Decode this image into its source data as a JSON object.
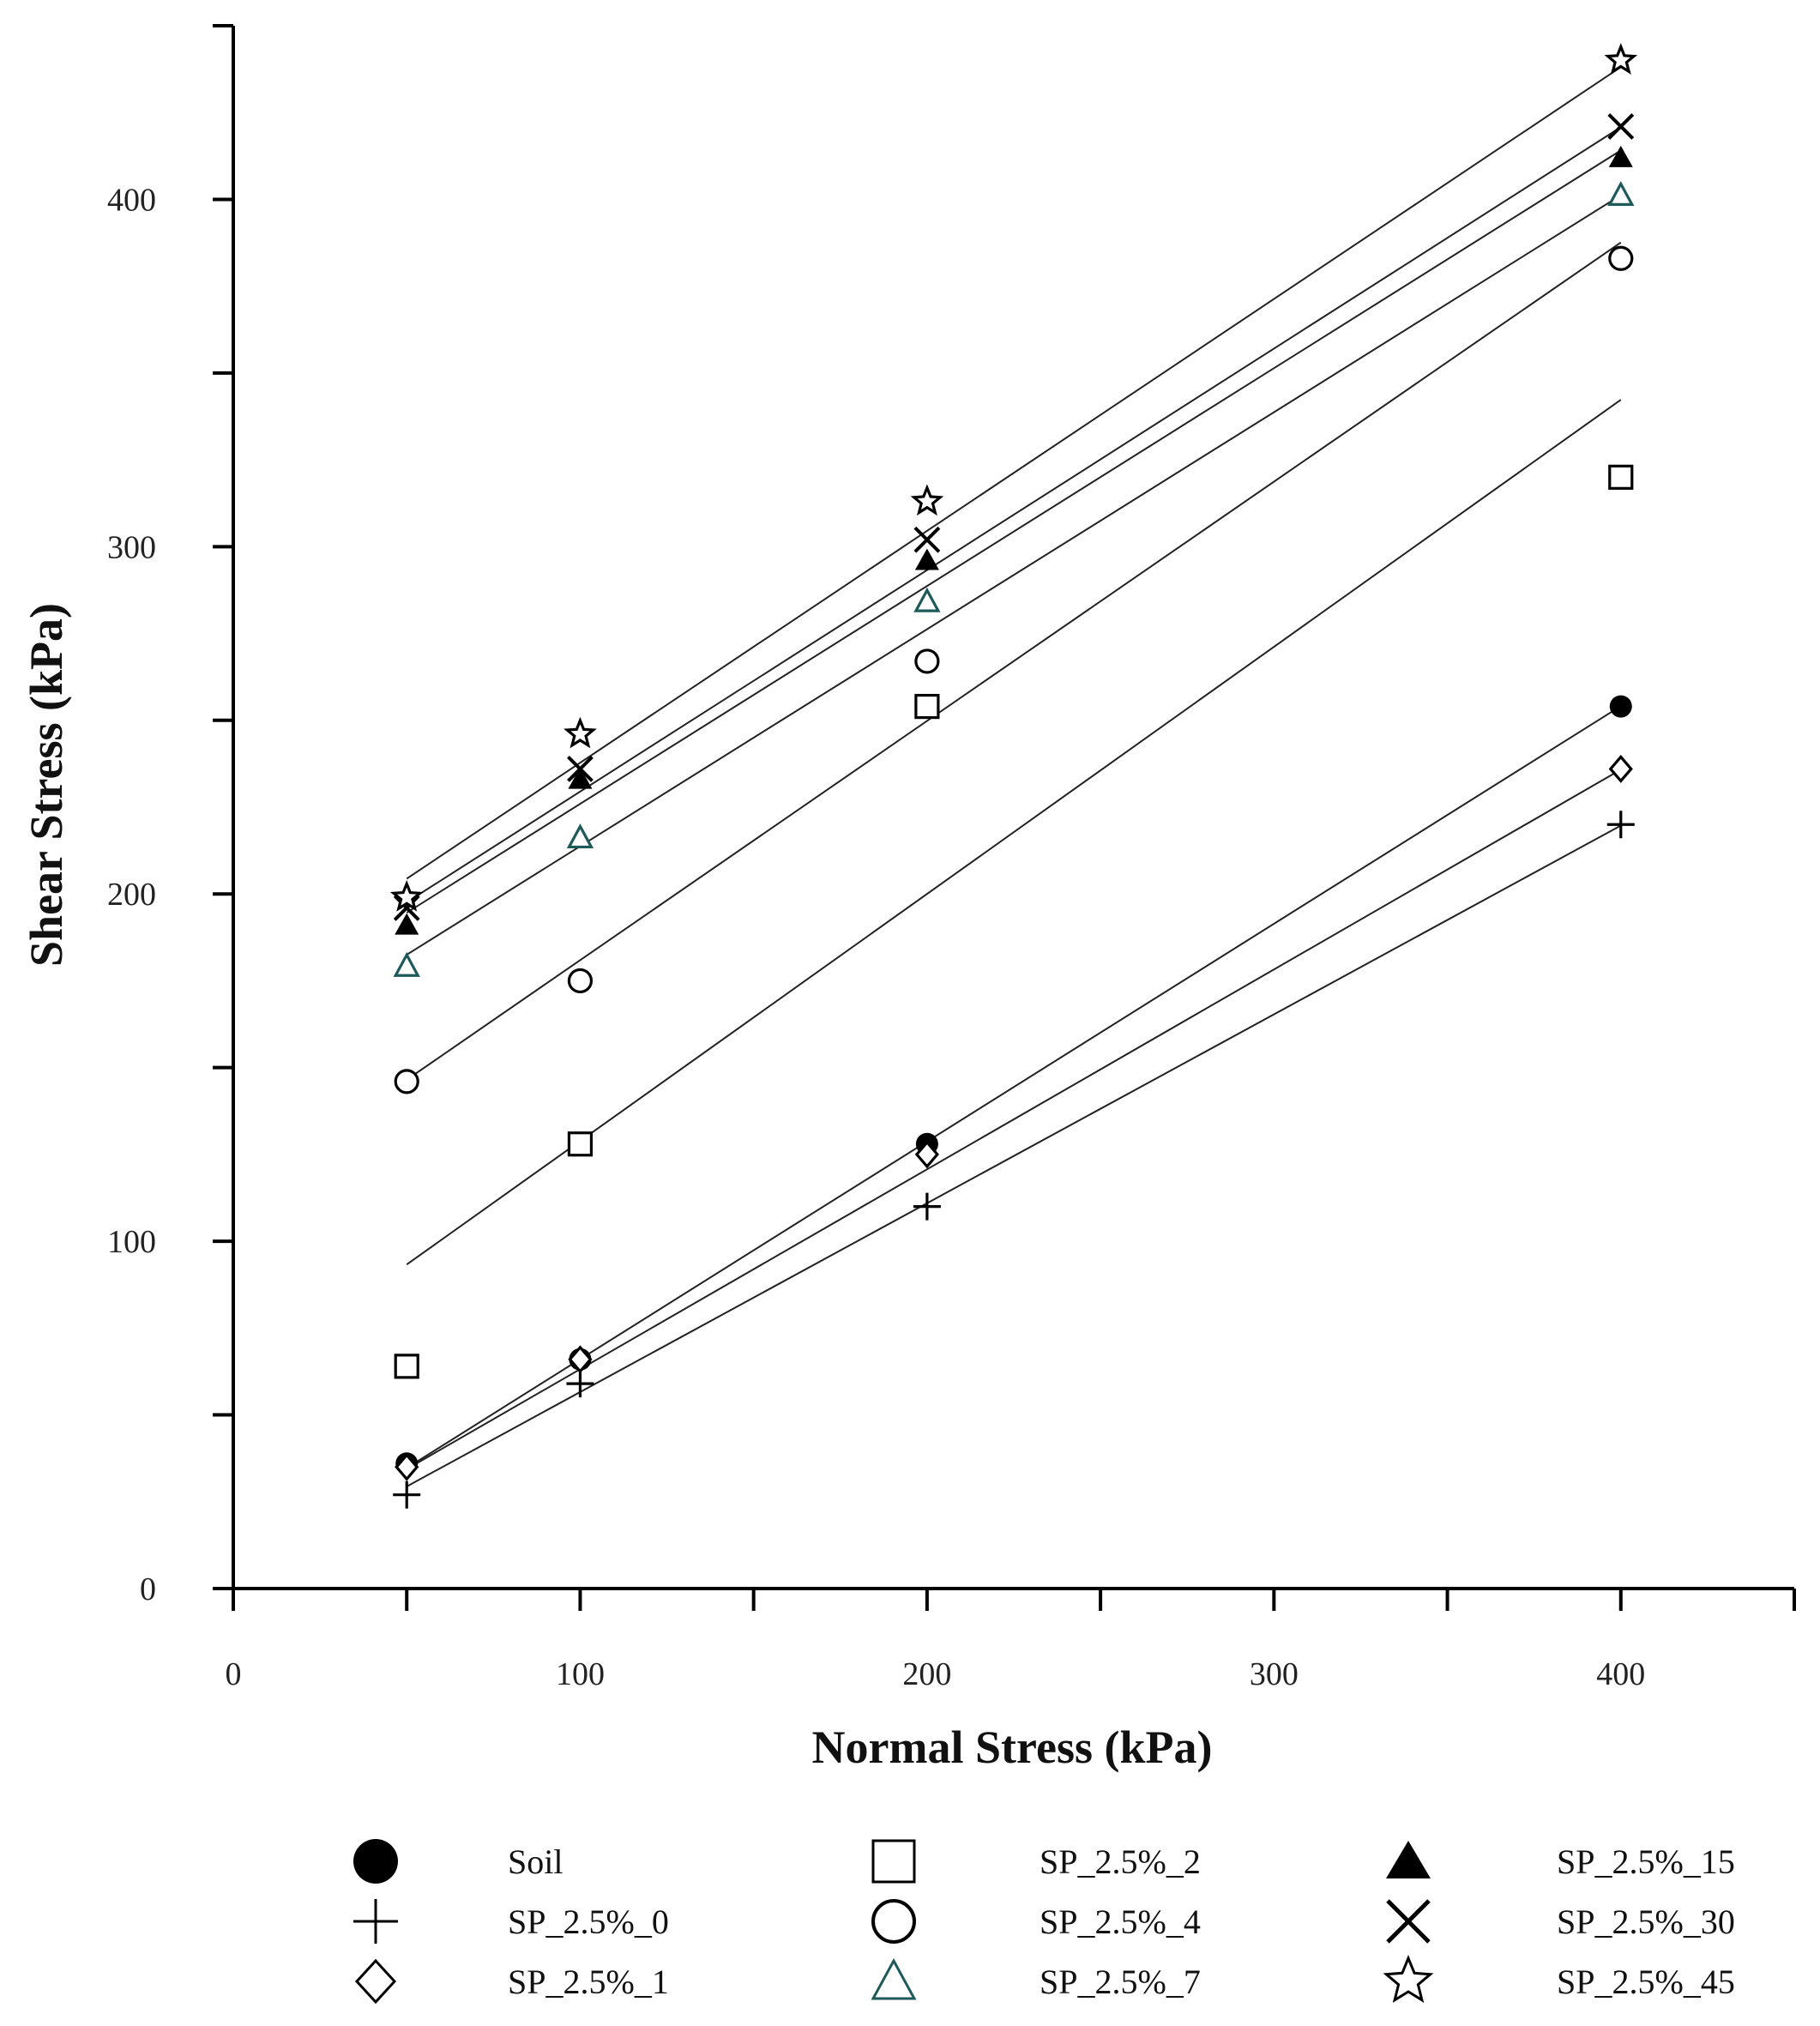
{
  "chart_data": {
    "type": "scatter",
    "xlabel": "Normal Stress (kPa)",
    "ylabel": "Shear Stress (kPa)",
    "xlim": [
      0,
      450
    ],
    "ylim": [
      0,
      450
    ],
    "x_ticks_major": [
      0,
      100,
      200,
      300,
      400
    ],
    "x_ticks_minor": [
      50,
      150,
      250,
      350,
      450
    ],
    "y_ticks_major": [
      0,
      100,
      200,
      300,
      400
    ],
    "y_ticks_minor": [
      50,
      150,
      250,
      350,
      450
    ],
    "grid": false,
    "legend_position": "bottom",
    "x": [
      50,
      100,
      200,
      400
    ],
    "series": [
      {
        "name": "Soil",
        "marker": "filled-circle",
        "color": "#000000",
        "values": [
          36,
          66,
          128,
          254
        ],
        "fit": [
          34.7,
          254.1
        ]
      },
      {
        "name": "SP_2.5%_0",
        "marker": "plus",
        "color": "#000000",
        "values": [
          27,
          59,
          110,
          220
        ],
        "fit": [
          29.4,
          219.7
        ]
      },
      {
        "name": "SP_2.5%_1",
        "marker": "diamond",
        "color": "#000000",
        "values": [
          35,
          66,
          125,
          236
        ],
        "fit": [
          34.4,
          235.8
        ]
      },
      {
        "name": "SP_2.5%_2",
        "marker": "square",
        "color": "#000000",
        "values": [
          64,
          128,
          254,
          320
        ],
        "fit": [
          93.3,
          342.3
        ]
      },
      {
        "name": "SP_2.5%_4",
        "marker": "open-circle",
        "color": "#000000",
        "values": [
          146,
          175,
          267,
          383
        ],
        "fit": [
          146.5,
          387.6
        ]
      },
      {
        "name": "SP_2.5%_7",
        "marker": "triangle-open",
        "color": "#1f5a5a",
        "values": [
          179,
          216,
          284,
          401
        ],
        "fit": [
          182.5,
          401.2
        ]
      },
      {
        "name": "SP_2.5%_15",
        "marker": "triangle-filled",
        "color": "#000000",
        "values": [
          191,
          233,
          296,
          412
        ],
        "fit": [
          194.6,
          414.1
        ]
      },
      {
        "name": "SP_2.5%_30",
        "marker": "x",
        "color": "#000000",
        "values": [
          196,
          236,
          302,
          421
        ],
        "fit": [
          197.6,
          420.8
        ]
      },
      {
        "name": "SP_2.5%_45",
        "marker": "star",
        "color": "#000000",
        "values": [
          199,
          246,
          313,
          440
        ],
        "fit": [
          204.4,
          438.1
        ]
      }
    ]
  },
  "legend": {
    "columns": [
      [
        "Soil",
        "SP_2.5%_0",
        "SP_2.5%_1"
      ],
      [
        "SP_2.5%_2",
        "SP_2.5%_4",
        "SP_2.5%_7"
      ],
      [
        "SP_2.5%_15",
        "SP_2.5%_30",
        "SP_2.5%_45"
      ]
    ]
  }
}
